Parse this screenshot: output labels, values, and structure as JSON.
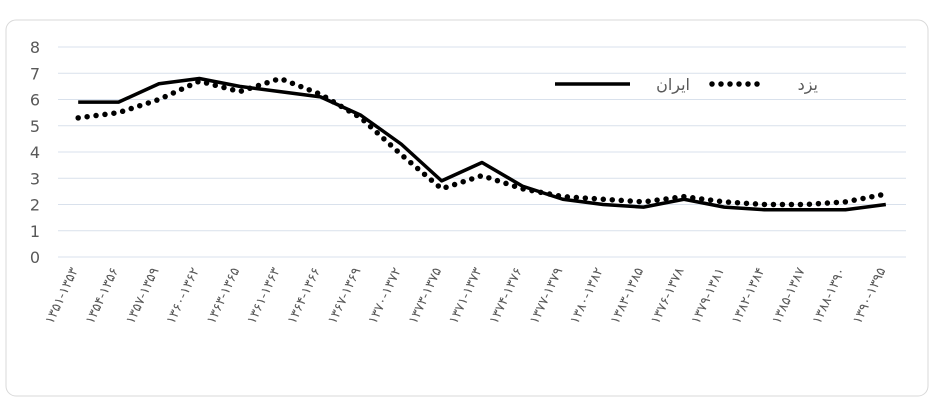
{
  "chart_data": {
    "type": "line",
    "categories": [
      "۱۳۵۱-۱۳۵۳",
      "۱۳۵۴-۱۳۵۶",
      "۱۳۵۷-۱۳۵۹",
      "۱۳۶۰-۱۳۶۲",
      "۱۳۶۳-۱۳۶۵",
      "۱۳۶۱-۱۳۶۳",
      "۱۳۶۴-۱۳۶۶",
      "۱۳۶۷-۱۳۶۹",
      "۱۳۷۰-۱۳۷۲",
      "۱۳۷۳-۱۳۷۵",
      "۱۳۷۱-۱۳۷۳",
      "۱۳۷۴-۱۳۷۶",
      "۱۳۷۷-۱۳۷۹",
      "۱۳۸۰-۱۳۸۲",
      "۱۳۸۳-۱۳۸۵",
      "۱۳۷۶-۱۳۷۸",
      "۱۳۷۹-۱۳۸۱",
      "۱۳۸۲-۱۳۸۴",
      "۱۳۸۵-۱۳۸۷",
      "۱۳۸۸-۱۳۹۰",
      "۱۳۹۰-۱۳۹۵"
    ],
    "series": [
      {
        "name": "ایران",
        "color": "#000000",
        "line_style": "solid",
        "values": [
          5.9,
          5.9,
          6.6,
          6.8,
          6.5,
          6.3,
          6.1,
          5.4,
          4.3,
          2.9,
          3.6,
          2.7,
          2.2,
          2.0,
          1.9,
          2.2,
          1.9,
          1.8,
          1.8,
          1.8,
          2.0
        ]
      },
      {
        "name": "یزد",
        "color": "#000000",
        "line_style": "dotted",
        "values": [
          5.3,
          5.5,
          6.0,
          6.7,
          6.3,
          6.8,
          6.2,
          5.3,
          3.9,
          2.6,
          3.1,
          2.6,
          2.3,
          2.2,
          2.1,
          2.3,
          2.1,
          2.0,
          2.0,
          2.1,
          2.4
        ]
      }
    ],
    "ylim": [
      0,
      8
    ],
    "yticks": [
      0,
      1,
      2,
      3,
      4,
      5,
      6,
      7,
      8
    ],
    "grid": true
  }
}
